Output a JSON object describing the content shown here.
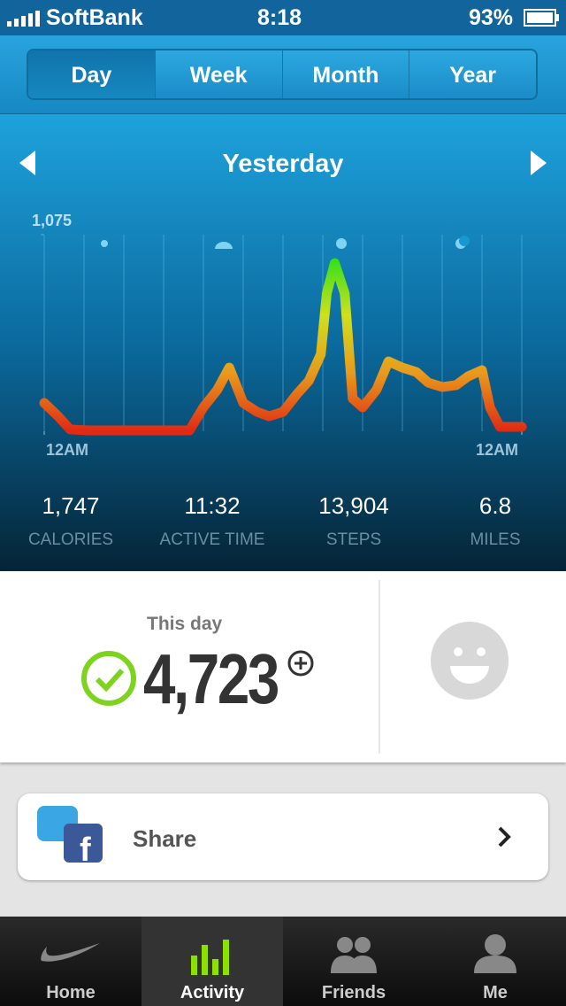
{
  "status_bar": {
    "carrier": "SoftBank",
    "time": "8:18",
    "battery": "93%"
  },
  "tabs": [
    "Day",
    "Week",
    "Month",
    "Year"
  ],
  "nav": {
    "title": "Yesterday"
  },
  "chart_data": {
    "type": "line",
    "x": [
      0,
      0.7,
      1.3,
      2.2,
      7.3,
      8,
      8.7,
      9.3,
      10,
      10.7,
      11.3,
      12,
      12.7,
      13.3,
      13.9,
      14.2,
      14.6,
      15.1,
      15.5,
      16,
      16.7,
      17.3,
      18,
      18.7,
      19.3,
      20,
      20.7,
      21.3,
      22,
      22.4,
      22.9,
      24
    ],
    "values": [
      155,
      82,
      10,
      5,
      5,
      131,
      227,
      348,
      155,
      106,
      82,
      106,
      203,
      276,
      421,
      755,
      919,
      755,
      179,
      131,
      227,
      382,
      348,
      324,
      266,
      242,
      252,
      300,
      334,
      131,
      24,
      24
    ],
    "xlim": [
      0,
      24
    ],
    "xticks": [
      {
        "value": 0,
        "label": "12AM"
      },
      {
        "value": 24,
        "label": "12AM"
      }
    ],
    "ylim": [
      0,
      1075
    ],
    "yticks": [
      {
        "value": 1075,
        "label": "1,075"
      }
    ],
    "colors": [
      "#e02a14",
      "#e89a1c",
      "#cfe01e",
      "#2ee01a"
    ]
  },
  "stats": [
    {
      "value": "1,747",
      "label": "CALORIES"
    },
    {
      "value": "11:32",
      "label": "ACTIVE TIME"
    },
    {
      "value": "13,904",
      "label": "STEPS"
    },
    {
      "value": "6.8",
      "label": "MILES"
    }
  ],
  "summary": {
    "label": "This day",
    "value": "4,723"
  },
  "share": {
    "label": "Share"
  },
  "tab_bar": [
    "Home",
    "Activity",
    "Friends",
    "Me"
  ]
}
